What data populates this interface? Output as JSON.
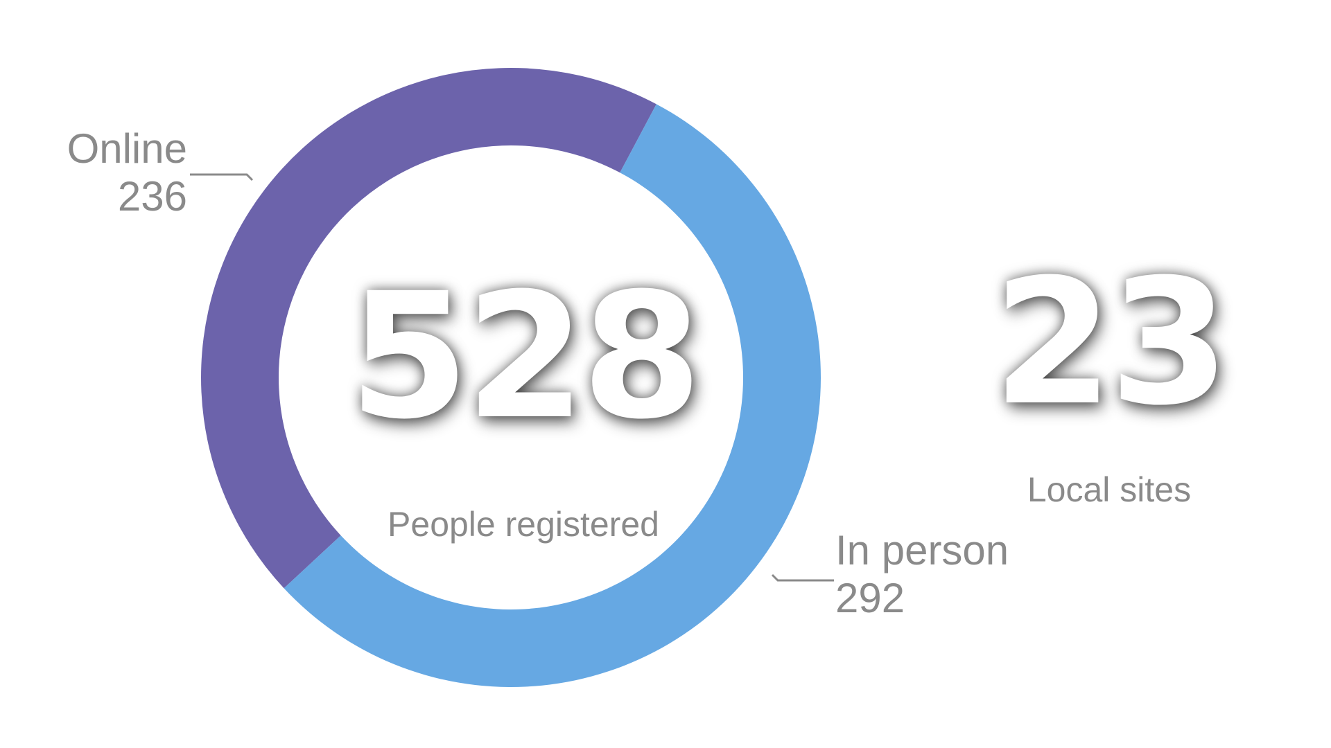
{
  "chart_data": {
    "type": "pie",
    "categories": [
      "Online",
      "In person"
    ],
    "values": [
      236,
      292
    ],
    "colors": [
      "#6c63ab",
      "#66a8e3"
    ],
    "center_value": "528",
    "center_label": "People registered"
  },
  "labels": {
    "online": {
      "name": "Online",
      "value": "236"
    },
    "in_person": {
      "name": "In person",
      "value": "292"
    }
  },
  "stat": {
    "sites_value": "23",
    "sites_label": "Local sites"
  },
  "colors": {
    "label_text": "#8a8a8a",
    "leader_line": "#8a8a8a",
    "background": "#ffffff"
  }
}
